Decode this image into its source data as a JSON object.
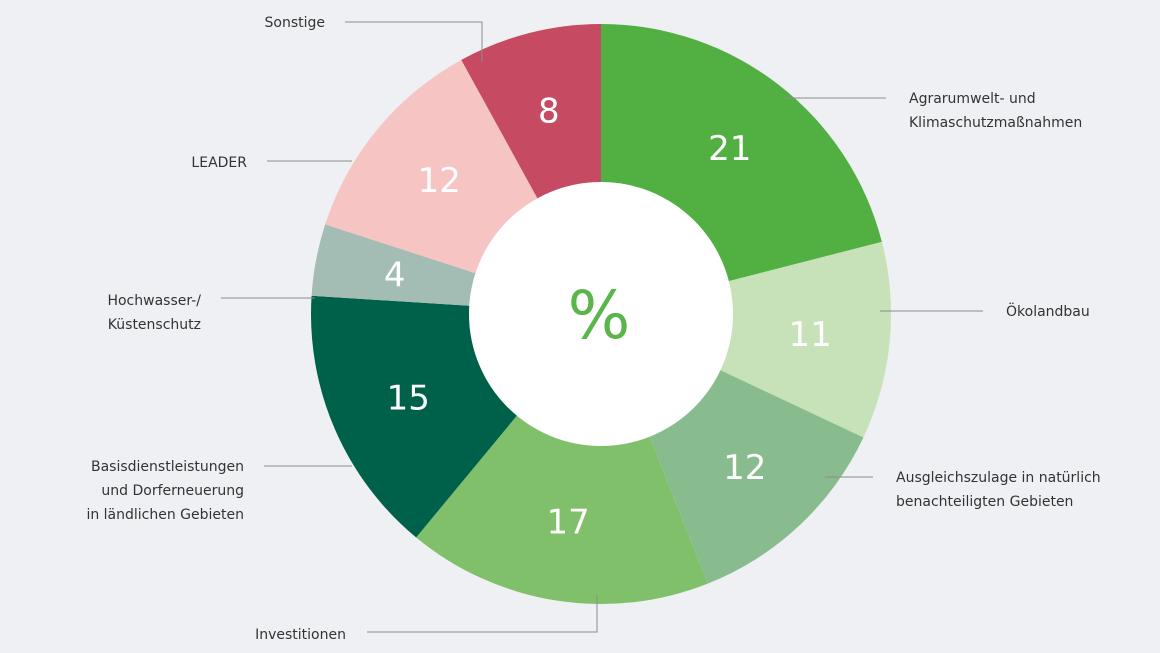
{
  "chart_data": {
    "type": "pie",
    "style": "donut",
    "center_text": "%",
    "slices": [
      {
        "label": [
          "Agrarumwelt- und",
          "Klimaschutzmaßnahmen"
        ],
        "value": 21,
        "color": "#52b043"
      },
      {
        "label": [
          "Ökolandbau"
        ],
        "value": 11,
        "color": "#c7e1b8"
      },
      {
        "label": [
          "Ausgleichszulage in natürlich",
          "benachteiligten Gebieten"
        ],
        "value": 12,
        "color": "#88bc8e"
      },
      {
        "label": [
          "Investitionen"
        ],
        "value": 17,
        "color": "#81c06a"
      },
      {
        "label": [
          "Basisdienstleistungen",
          "und Dorferneuerung",
          "in ländlichen Gebieten"
        ],
        "value": 15,
        "color": "#00614a"
      },
      {
        "label": [
          "Hochwasser-/",
          "Küstenschutz"
        ],
        "value": 4,
        "color": "#a3bcb4"
      },
      {
        "label": [
          "LEADER"
        ],
        "value": 12,
        "color": "#f5c4c3"
      },
      {
        "label": [
          "Sonstige"
        ],
        "value": 8,
        "color": "#c64a62"
      }
    ],
    "colors": {
      "background": "#eff0f4",
      "center_fill": "#ffffff",
      "center_text": "#5ab54a",
      "value_text": "#ffffff",
      "label_text": "#333333",
      "leader_line": "#8c8c8c"
    }
  }
}
